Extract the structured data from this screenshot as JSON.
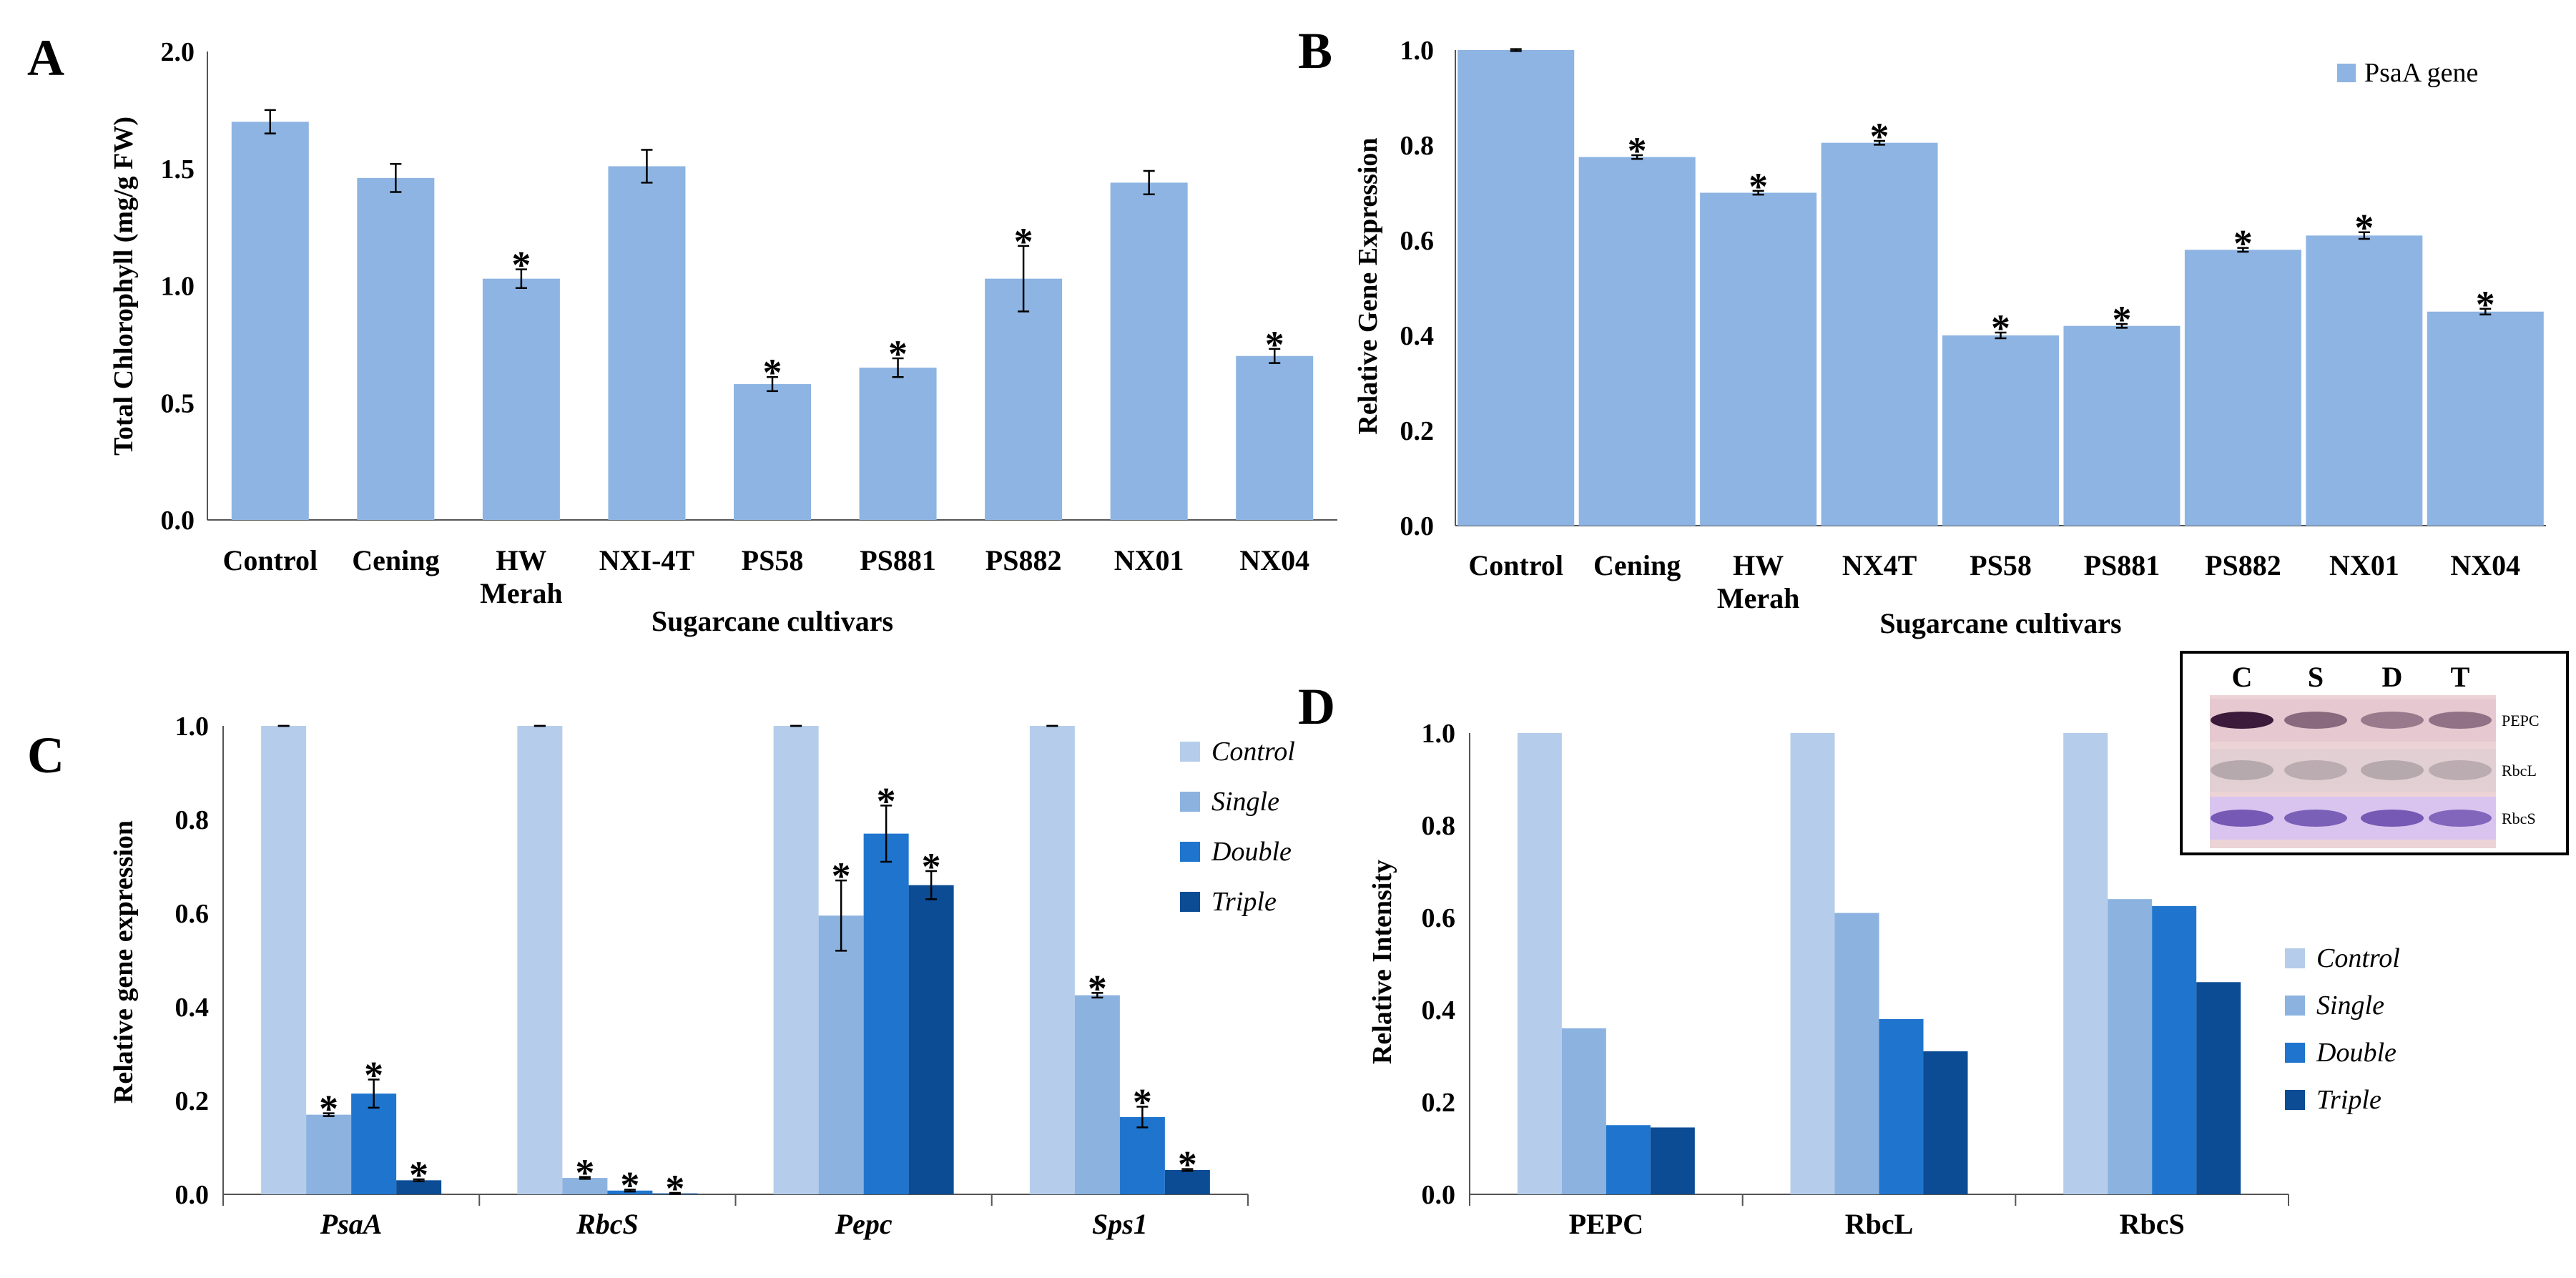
{
  "colors": {
    "base_blue": "#8DB4E2",
    "control": "#B5CDEA",
    "single": "#8CB2E0",
    "double": "#1F75CE",
    "triple": "#0B4C95"
  },
  "chart_data": [
    {
      "panel": "A",
      "type": "bar",
      "xlabel": "Sugarcane cultivars",
      "ylabel": "Total Chlorophyll  (mg/g FW)",
      "ylim": [
        0,
        2.0
      ],
      "yticks": [
        "0.0",
        "0.5",
        "1.0",
        "1.5",
        "2.0"
      ],
      "categories": [
        [
          "Control"
        ],
        [
          "Cening"
        ],
        [
          "HW",
          "Merah"
        ],
        [
          "NXI-4T"
        ],
        [
          "PS58"
        ],
        [
          "PS881"
        ],
        [
          "PS882"
        ],
        [
          "NX01"
        ],
        [
          "NX04"
        ]
      ],
      "values": [
        1.7,
        1.46,
        1.03,
        1.51,
        0.58,
        0.65,
        1.03,
        1.44,
        0.7
      ],
      "errors": [
        0.05,
        0.06,
        0.04,
        0.07,
        0.03,
        0.04,
        0.14,
        0.05,
        0.03
      ],
      "significant": [
        false,
        false,
        true,
        false,
        true,
        true,
        true,
        false,
        true
      ],
      "star": "*"
    },
    {
      "panel": "B",
      "type": "bar",
      "xlabel": "Sugarcane cultivars",
      "ylabel": "Relative Gene Expression",
      "ylim": [
        0,
        1.0
      ],
      "yticks": [
        "0.0",
        "0.2",
        "0.4",
        "0.6",
        "0.8",
        "1.0"
      ],
      "legend": [
        "PsaA gene"
      ],
      "categories": [
        [
          "Control"
        ],
        [
          "Cening"
        ],
        [
          "HW",
          "Merah"
        ],
        [
          "NX4T"
        ],
        [
          "PS58"
        ],
        [
          "PS881"
        ],
        [
          "PS882"
        ],
        [
          "NX01"
        ],
        [
          "NX04"
        ]
      ],
      "values": [
        1.0,
        0.775,
        0.7,
        0.805,
        0.4,
        0.42,
        0.58,
        0.61,
        0.45
      ],
      "errors": [
        0.002,
        0.004,
        0.004,
        0.004,
        0.006,
        0.004,
        0.004,
        0.007,
        0.006
      ],
      "significant": [
        false,
        true,
        true,
        true,
        true,
        true,
        true,
        true,
        true
      ],
      "star": "*"
    },
    {
      "panel": "C",
      "type": "bar",
      "ylabel": "Relative gene expression",
      "ylim": [
        0,
        1.0
      ],
      "yticks": [
        "0.0",
        "0.2",
        "0.4",
        "0.6",
        "0.8",
        "1.0"
      ],
      "categories": [
        "PsaA",
        "RbcS",
        "Pepc",
        "Sps1"
      ],
      "series": [
        {
          "name": "Control",
          "values": [
            1.0,
            1.0,
            1.0,
            1.0
          ],
          "errors": [
            0,
            0,
            0,
            0
          ],
          "significant": [
            false,
            false,
            false,
            false
          ]
        },
        {
          "name": "Single",
          "values": [
            0.17,
            0.035,
            0.595,
            0.425
          ],
          "errors": [
            0.003,
            0.002,
            0.075,
            0.005
          ],
          "significant": [
            true,
            true,
            true,
            true
          ]
        },
        {
          "name": "Double",
          "values": [
            0.215,
            0.008,
            0.77,
            0.165
          ],
          "errors": [
            0.03,
            0.002,
            0.06,
            0.022
          ],
          "significant": [
            true,
            true,
            true,
            true
          ]
        },
        {
          "name": "Triple",
          "values": [
            0.03,
            0.002,
            0.66,
            0.052
          ],
          "errors": [
            0.002,
            0.001,
            0.03,
            0.002
          ],
          "significant": [
            true,
            true,
            true,
            true
          ]
        }
      ],
      "star": "*"
    },
    {
      "panel": "D",
      "type": "bar",
      "ylabel": "Relative Intensity",
      "ylim": [
        0,
        1.0
      ],
      "yticks": [
        "0.0",
        "0.2",
        "0.4",
        "0.6",
        "0.8",
        "1.0"
      ],
      "categories": [
        "PEPC",
        "RbcL",
        "RbcS"
      ],
      "series": [
        {
          "name": "Control",
          "values": [
            1.0,
            1.0,
            1.0
          ]
        },
        {
          "name": "Single",
          "values": [
            0.36,
            0.61,
            0.64
          ]
        },
        {
          "name": "Double",
          "values": [
            0.15,
            0.38,
            0.625
          ]
        },
        {
          "name": "Triple",
          "values": [
            0.145,
            0.31,
            0.46
          ]
        }
      ],
      "blot": {
        "columns": [
          "C",
          "S",
          "D",
          "T"
        ],
        "rows": [
          "PEPC",
          "RbcL",
          "RbcS"
        ]
      }
    }
  ]
}
